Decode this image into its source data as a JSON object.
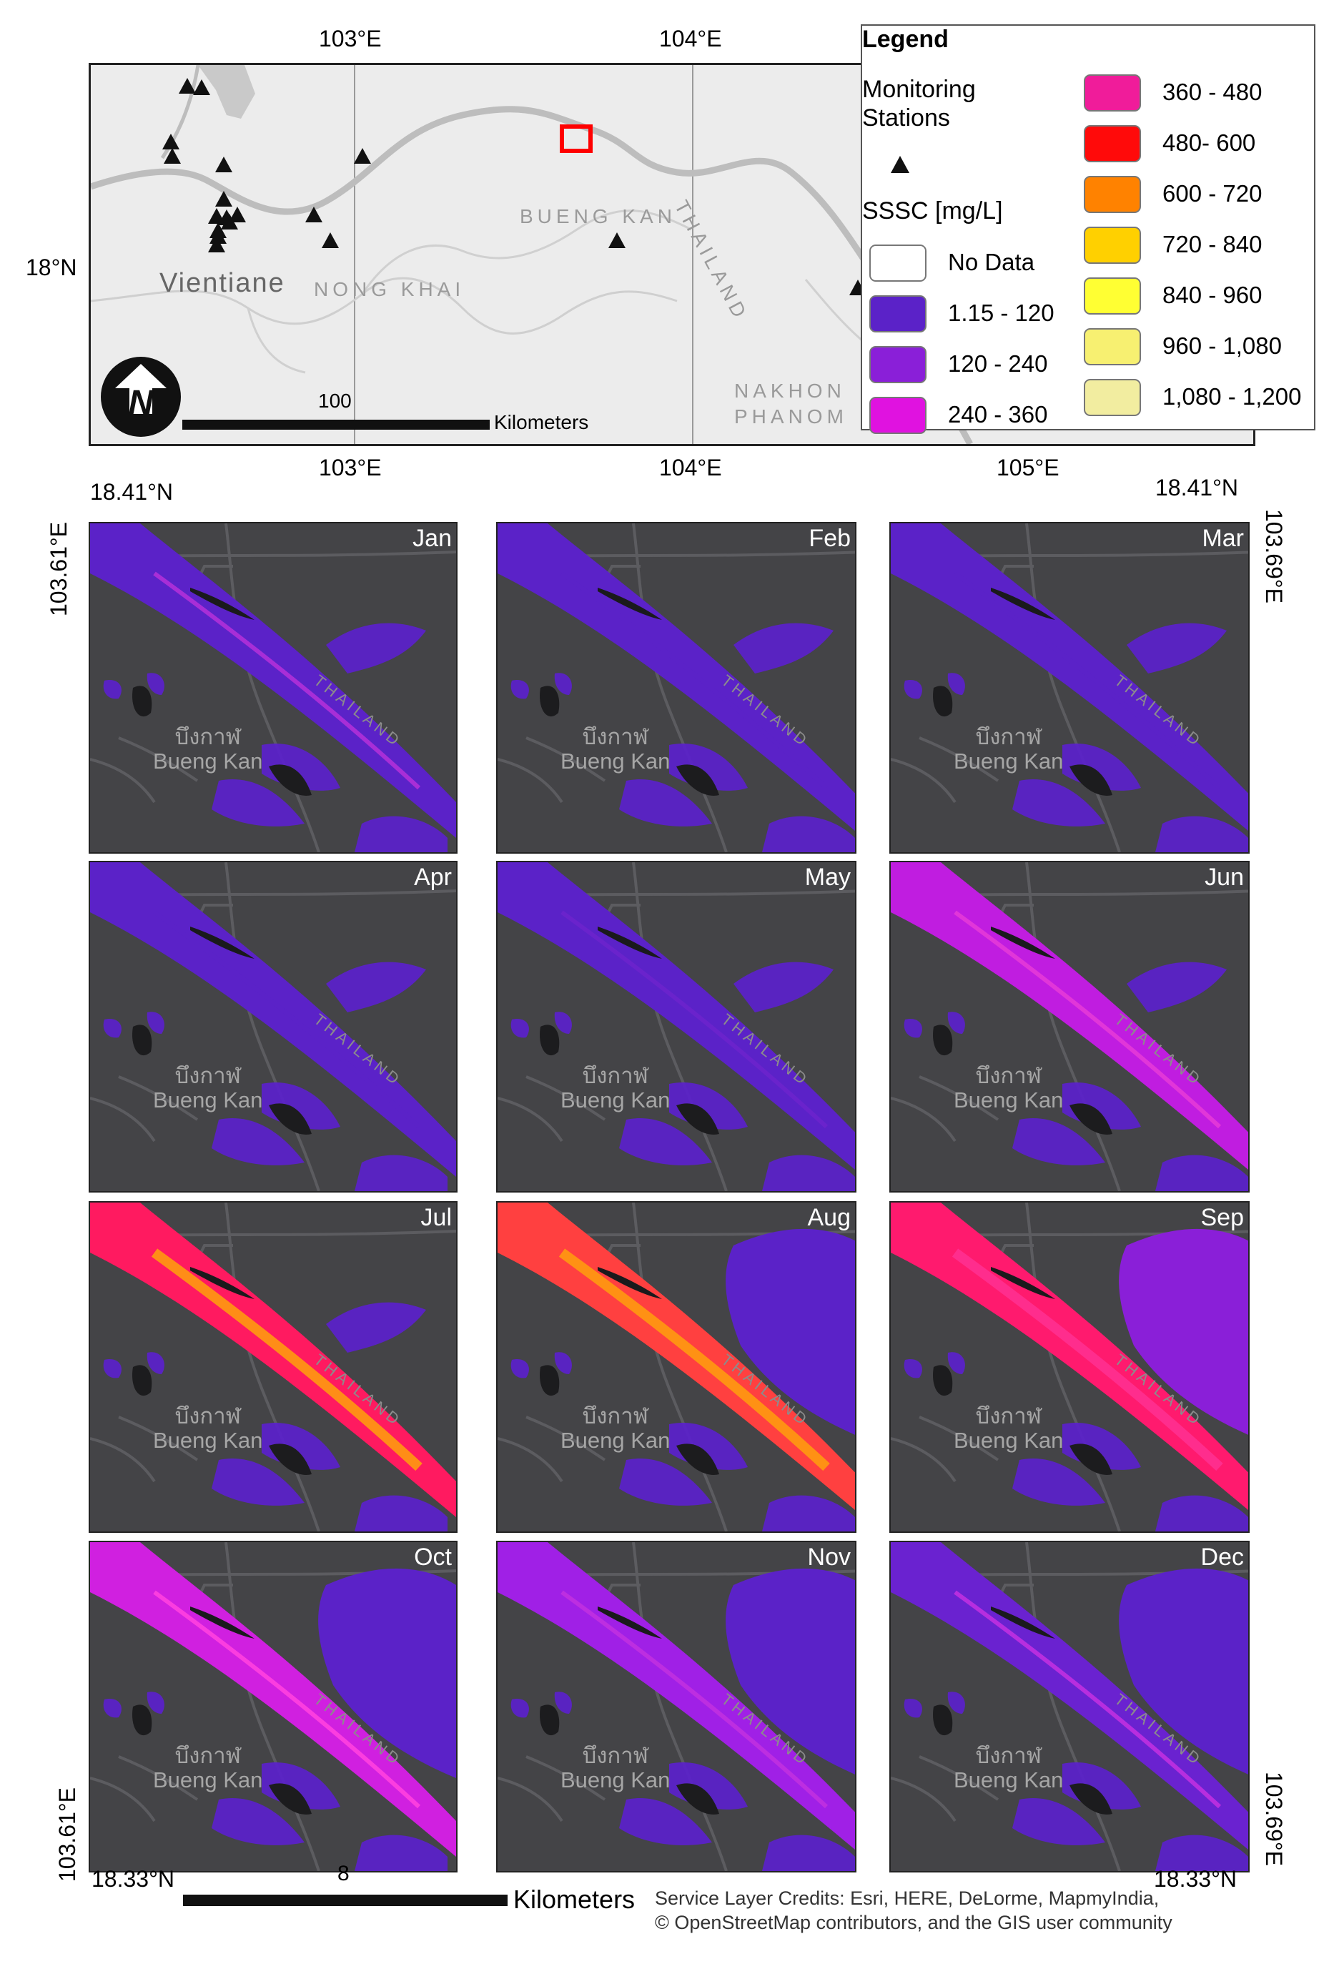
{
  "overview": {
    "lon_labels_top": [
      "103°E",
      "104°E"
    ],
    "lon_labels_bottom": [
      "103°E",
      "104°E",
      "105°E"
    ],
    "lat_label": "18°N",
    "places": [
      "Vientiane",
      "NONG KHAI",
      "BUENG KAN",
      "THAILAND",
      "NAKHON",
      "PHANOM"
    ],
    "scale_value": "100",
    "scale_unit": "Kilometers",
    "station_count": 18
  },
  "legend": {
    "title": "Legend",
    "stations_label_line1": "Monitoring",
    "stations_label_line2": "Stations",
    "sssc_label": "SSSC [mg/L]",
    "classes": [
      {
        "label": "No Data",
        "color": "#ffffff"
      },
      {
        "label": "1.15 - 120",
        "color": "#5b22c8"
      },
      {
        "label": "120 - 240",
        "color": "#8a1fd8"
      },
      {
        "label": "240 - 360",
        "color": "#e012e0"
      },
      {
        "label": "360 - 480",
        "color": "#f01c9a"
      },
      {
        "label": "480- 600",
        "color": "#ff0a0a"
      },
      {
        "label": "600 - 720",
        "color": "#ff8200"
      },
      {
        "label": "720 - 840",
        "color": "#ffd000"
      },
      {
        "label": "840 - 960",
        "color": "#ffff33"
      },
      {
        "label": "960 - 1,080",
        "color": "#f7f071"
      },
      {
        "label": "1,080 - 1,200",
        "color": "#f2eda0"
      }
    ]
  },
  "panels_frame": {
    "top_left_lat": "18.41°N",
    "top_right_lat": "18.41°N",
    "left_lon_top": "103.61°E",
    "right_lon_top": "103.69°E",
    "left_lon_bottom": "103.61°E",
    "right_lon_bottom": "103.69°E",
    "bottom_left_lat": "18.33°N",
    "bottom_right_lat": "18.33°N",
    "scale_value": "8",
    "scale_unit": "Kilometers",
    "town_thai": "บึงกาฬ",
    "town_en": "Bueng Kan",
    "river_label": "THAILAND"
  },
  "months": [
    {
      "name": "Jan",
      "river": "#5b22c8",
      "accent": "#b030d8"
    },
    {
      "name": "Feb",
      "river": "#5b22c8",
      "accent": "#5b22c8"
    },
    {
      "name": "Mar",
      "river": "#5b22c8",
      "accent": "#5b22c8"
    },
    {
      "name": "Apr",
      "river": "#5b22c8",
      "accent": "#5b22c8"
    },
    {
      "name": "May",
      "river": "#5b22c8",
      "accent": "#6b24cc"
    },
    {
      "name": "Jun",
      "river": "#c01de0",
      "accent": "#e43ad8"
    },
    {
      "name": "Jul",
      "river": "#ff1a60",
      "accent": "#ff9a10"
    },
    {
      "name": "Aug",
      "river": "#ff4040",
      "accent": "#ff9a10"
    },
    {
      "name": "Sep",
      "river": "#ff1a6e",
      "accent": "#ff3090"
    },
    {
      "name": "Oct",
      "river": "#d020e0",
      "accent": "#ff40e0"
    },
    {
      "name": "Nov",
      "river": "#a020e6",
      "accent": "#c030e0"
    },
    {
      "name": "Dec",
      "river": "#6a22d0",
      "accent": "#c030e0"
    }
  ],
  "credits": {
    "line1": "Service Layer Credits: Esri, HERE, DeLorme, MapmyIndia,",
    "line2": "© OpenStreetMap contributors, and the GIS user community"
  }
}
